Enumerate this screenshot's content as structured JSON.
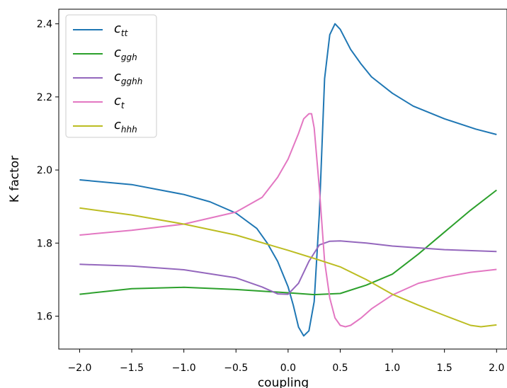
{
  "chart_data": {
    "type": "line",
    "title": "",
    "xlabel": "coupling",
    "ylabel": "K factor",
    "xlim": [
      -2.2,
      2.1
    ],
    "ylim": [
      1.51,
      2.44
    ],
    "xticks": [
      -2.0,
      -1.5,
      -1.0,
      -0.5,
      0.0,
      0.5,
      1.0,
      1.5,
      2.0
    ],
    "xtick_labels": [
      "−2.0",
      "−1.5",
      "−1.0",
      "−0.5",
      "0.0",
      "0.5",
      "1.0",
      "1.5",
      "2.0"
    ],
    "yticks": [
      1.6,
      1.8,
      2.0,
      2.2,
      2.4
    ],
    "ytick_labels": [
      "1.6",
      "1.8",
      "2.0",
      "2.2",
      "2.4"
    ],
    "grid": false,
    "legend_position": "top-left",
    "series": [
      {
        "name": "c_tt",
        "base": "c",
        "sub": "tt",
        "color": "#1f77b4",
        "points": [
          [
            -2.0,
            1.973
          ],
          [
            -1.5,
            1.96
          ],
          [
            -1.0,
            1.933
          ],
          [
            -0.75,
            1.913
          ],
          [
            -0.5,
            1.882
          ],
          [
            -0.3,
            1.84
          ],
          [
            -0.2,
            1.8
          ],
          [
            -0.1,
            1.75
          ],
          [
            0.0,
            1.68
          ],
          [
            0.05,
            1.63
          ],
          [
            0.1,
            1.57
          ],
          [
            0.15,
            1.546
          ],
          [
            0.2,
            1.56
          ],
          [
            0.25,
            1.64
          ],
          [
            0.3,
            1.88
          ],
          [
            0.35,
            2.25
          ],
          [
            0.4,
            2.37
          ],
          [
            0.45,
            2.4
          ],
          [
            0.5,
            2.385
          ],
          [
            0.6,
            2.33
          ],
          [
            0.7,
            2.29
          ],
          [
            0.8,
            2.255
          ],
          [
            1.0,
            2.21
          ],
          [
            1.2,
            2.175
          ],
          [
            1.5,
            2.14
          ],
          [
            1.8,
            2.112
          ],
          [
            2.0,
            2.097
          ]
        ]
      },
      {
        "name": "c_ggh",
        "base": "c",
        "sub": "ggh",
        "color": "#2ca02c",
        "points": [
          [
            -2.0,
            1.66
          ],
          [
            -1.5,
            1.675
          ],
          [
            -1.0,
            1.679
          ],
          [
            -0.5,
            1.673
          ],
          [
            0.0,
            1.664
          ],
          [
            0.25,
            1.659
          ],
          [
            0.5,
            1.662
          ],
          [
            0.75,
            1.685
          ],
          [
            1.0,
            1.715
          ],
          [
            1.25,
            1.77
          ],
          [
            1.5,
            1.83
          ],
          [
            1.75,
            1.89
          ],
          [
            2.0,
            1.945
          ]
        ]
      },
      {
        "name": "c_gghh",
        "base": "c",
        "sub": "gghh",
        "color": "#9467bd",
        "points": [
          [
            -2.0,
            1.742
          ],
          [
            -1.5,
            1.737
          ],
          [
            -1.0,
            1.727
          ],
          [
            -0.5,
            1.705
          ],
          [
            -0.25,
            1.68
          ],
          [
            -0.1,
            1.661
          ],
          [
            0.0,
            1.66
          ],
          [
            0.1,
            1.69
          ],
          [
            0.2,
            1.75
          ],
          [
            0.3,
            1.795
          ],
          [
            0.4,
            1.805
          ],
          [
            0.5,
            1.806
          ],
          [
            0.75,
            1.8
          ],
          [
            1.0,
            1.792
          ],
          [
            1.5,
            1.782
          ],
          [
            2.0,
            1.777
          ]
        ]
      },
      {
        "name": "c_t",
        "base": "c",
        "sub": "t",
        "color": "#e377c2",
        "points": [
          [
            -2.0,
            1.822
          ],
          [
            -1.5,
            1.835
          ],
          [
            -1.0,
            1.852
          ],
          [
            -0.5,
            1.885
          ],
          [
            -0.25,
            1.925
          ],
          [
            -0.1,
            1.98
          ],
          [
            0.0,
            2.03
          ],
          [
            0.1,
            2.1
          ],
          [
            0.15,
            2.14
          ],
          [
            0.2,
            2.154
          ],
          [
            0.225,
            2.154
          ],
          [
            0.25,
            2.115
          ],
          [
            0.3,
            1.95
          ],
          [
            0.35,
            1.75
          ],
          [
            0.4,
            1.65
          ],
          [
            0.45,
            1.595
          ],
          [
            0.5,
            1.575
          ],
          [
            0.55,
            1.571
          ],
          [
            0.6,
            1.575
          ],
          [
            0.7,
            1.595
          ],
          [
            0.8,
            1.62
          ],
          [
            1.0,
            1.658
          ],
          [
            1.25,
            1.69
          ],
          [
            1.5,
            1.707
          ],
          [
            1.75,
            1.72
          ],
          [
            2.0,
            1.728
          ]
        ]
      },
      {
        "name": "c_hhh",
        "base": "c",
        "sub": "hhh",
        "color": "#bcbd22",
        "points": [
          [
            -2.0,
            1.896
          ],
          [
            -1.5,
            1.877
          ],
          [
            -1.0,
            1.852
          ],
          [
            -0.5,
            1.822
          ],
          [
            0.0,
            1.78
          ],
          [
            0.25,
            1.758
          ],
          [
            0.5,
            1.735
          ],
          [
            0.75,
            1.7
          ],
          [
            1.0,
            1.66
          ],
          [
            1.25,
            1.63
          ],
          [
            1.5,
            1.602
          ],
          [
            1.75,
            1.575
          ],
          [
            1.85,
            1.571
          ],
          [
            2.0,
            1.576
          ]
        ]
      }
    ]
  }
}
